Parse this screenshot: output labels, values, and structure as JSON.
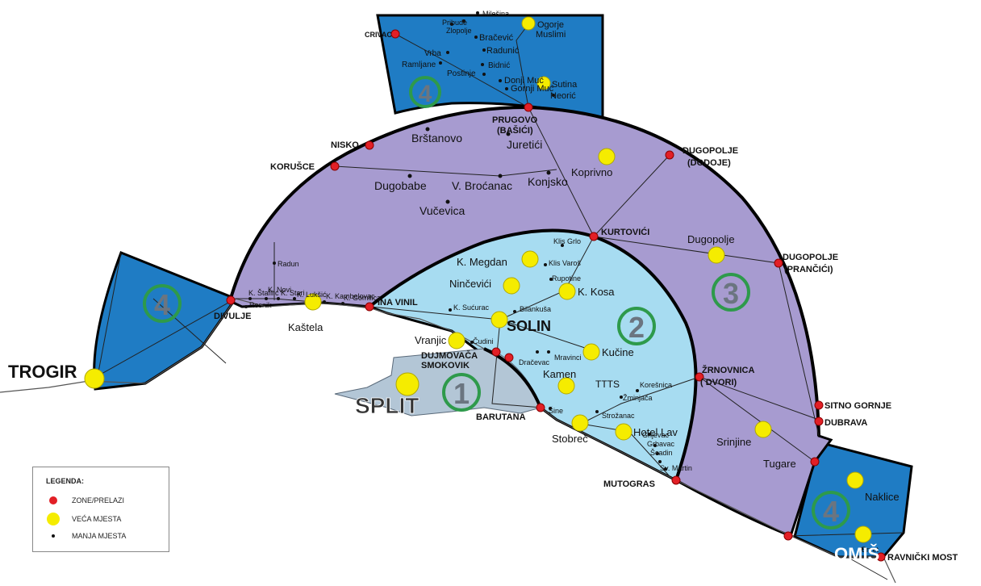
{
  "colors": {
    "zone1": "#b3c6d6",
    "zone2": "#a7dcf1",
    "zone3": "#a79bd0",
    "zone4": "#1f7cc4",
    "border": "#000000",
    "red_dot": "#e21f26",
    "yellow_dot": "#f5ec00",
    "zone_circle": "#2e9a4b",
    "zone_number": "#6b7580"
  },
  "zones": {
    "one": "1",
    "two": "2",
    "three": "3",
    "four": "4"
  },
  "labels": {
    "split": "SPLIT",
    "trogir": "TROGIR",
    "omis": "OMIŠ",
    "solin": "SOLIN"
  },
  "legend": {
    "title": "LEGENDA:",
    "zone_label": "ZONE/PRELAZI",
    "large_label": "VEĆA MJESTA",
    "small_label": "MANJA MJESTA"
  },
  "crossings": [
    {
      "id": "crivac",
      "text": "CRIVAC",
      "bold": true
    },
    {
      "id": "prugovo",
      "text": "PRUGOVO",
      "bold": true
    },
    {
      "id": "basici",
      "text": "(BAŠIĆI)",
      "bold": true
    },
    {
      "id": "nisko",
      "text": "NISKO",
      "bold": true
    },
    {
      "id": "korusce",
      "text": "KORUŠCE",
      "bold": true
    },
    {
      "id": "dugopolje-dodoje",
      "text": "DUGOPOLJE",
      "bold": true
    },
    {
      "id": "dodoje",
      "text": "(DODOJE)",
      "bold": true
    },
    {
      "id": "kurtovici",
      "text": "KURTOVIĆI",
      "bold": true
    },
    {
      "id": "dugopolje-prancici",
      "text": "DUGOPOLJE",
      "bold": true
    },
    {
      "id": "prancici",
      "text": "(PRANČIĆI)",
      "bold": true
    },
    {
      "id": "ina-vinil",
      "text": "INA VINIL",
      "bold": true
    },
    {
      "id": "divulje",
      "text": "DIVULJE",
      "bold": true
    },
    {
      "id": "dujmovaca",
      "text": "DUJMOVAČA",
      "bold": true
    },
    {
      "id": "smokovik",
      "text": "SMOKOVIK",
      "bold": true
    },
    {
      "id": "barutana",
      "text": "BARUTANA",
      "bold": true
    },
    {
      "id": "zrnovnica",
      "text": "ŽRNOVNICA",
      "bold": true
    },
    {
      "id": "dvori",
      "text": "( DVORI)",
      "bold": true
    },
    {
      "id": "sitno-gornje",
      "text": "SITNO GORNJE",
      "bold": true
    },
    {
      "id": "dubrava",
      "text": "DUBRAVA",
      "bold": true
    },
    {
      "id": "mutogras",
      "text": "MUTOGRAS",
      "bold": true
    },
    {
      "id": "ravnicki-most",
      "text": "RAVNIČKI MOST",
      "bold": true
    }
  ],
  "places_large": [
    {
      "id": "ogorje",
      "text": "Ogorje"
    },
    {
      "id": "muslimi",
      "text": "Muslimi"
    },
    {
      "id": "sutina",
      "text": "Sutina"
    },
    {
      "id": "koprivno",
      "text": "Koprivno"
    },
    {
      "id": "dugopolje",
      "text": "Dugopolje"
    },
    {
      "id": "kastela",
      "text": "Kaštela"
    },
    {
      "id": "k-megdan",
      "text": "K. Megdan"
    },
    {
      "id": "nincevici",
      "text": "Ninčevići"
    },
    {
      "id": "k-kosa",
      "text": "K. Kosa"
    },
    {
      "id": "vranjic",
      "text": "Vranjic"
    },
    {
      "id": "kucine",
      "text": "Kučine"
    },
    {
      "id": "kamen",
      "text": "Kamen"
    },
    {
      "id": "stobrec",
      "text": "Stobreč"
    },
    {
      "id": "hotel-lav",
      "text": "Hotel Lav"
    },
    {
      "id": "srinjine",
      "text": "Srinjine"
    },
    {
      "id": "tugare",
      "text": "Tugare"
    },
    {
      "id": "naklice",
      "text": "Naklice"
    }
  ],
  "places_medium": [
    {
      "id": "brstanovo",
      "text": "Brštanovo"
    },
    {
      "id": "juretici",
      "text": "Juretići"
    },
    {
      "id": "dugobabe",
      "text": "Dugobabe"
    },
    {
      "id": "v-brocanac",
      "text": "V. Broćanac"
    },
    {
      "id": "konjsko",
      "text": "Konjsko"
    },
    {
      "id": "vucevica",
      "text": "Vučevica"
    },
    {
      "id": "tts",
      "text": "TTTS"
    }
  ],
  "places_small": [
    {
      "id": "milesina",
      "text": "Milešina"
    },
    {
      "id": "pribude",
      "text": "Pribude"
    },
    {
      "id": "zlopolje",
      "text": "Zlopolje"
    },
    {
      "id": "bracevic",
      "text": "Bračević"
    },
    {
      "id": "radunic",
      "text": "Radunić"
    },
    {
      "id": "vrba",
      "text": "Vrba"
    },
    {
      "id": "bidnic",
      "text": "Bidnić"
    },
    {
      "id": "ramljane",
      "text": "Ramljane"
    },
    {
      "id": "postinje",
      "text": "Postinje"
    },
    {
      "id": "donji-muc",
      "text": "Donji Muć"
    },
    {
      "id": "gornji-muc",
      "text": "Gornji Muć"
    },
    {
      "id": "neoric",
      "text": "Neorić"
    },
    {
      "id": "radun",
      "text": "Radun"
    },
    {
      "id": "k-stafilic",
      "text": "K. Štafilić"
    },
    {
      "id": "k-novi",
      "text": "K. Novi"
    },
    {
      "id": "k-stari",
      "text": "K. Stari"
    },
    {
      "id": "k-luksic",
      "text": "K. Lukšić"
    },
    {
      "id": "k-kambelovac",
      "text": "K. Kambelovac"
    },
    {
      "id": "k-gomilica",
      "text": "K. Gomilica"
    },
    {
      "id": "resnik",
      "text": "Resnik"
    },
    {
      "id": "klis-grlo",
      "text": "Klis Grlo"
    },
    {
      "id": "klis-varos",
      "text": "Klis Varoš"
    },
    {
      "id": "rupotine",
      "text": "Rupotine"
    },
    {
      "id": "k-sucurac",
      "text": "K. Sućurac"
    },
    {
      "id": "bilankusa",
      "text": "Bilankuša"
    },
    {
      "id": "cudini",
      "text": "Čudini"
    },
    {
      "id": "dracevac",
      "text": "Dračevac"
    },
    {
      "id": "mravinci",
      "text": "Mravinci"
    },
    {
      "id": "koresnica",
      "text": "Korešnica"
    },
    {
      "id": "zminjaca",
      "text": "Žminjača"
    },
    {
      "id": "sine",
      "text": "Šine"
    },
    {
      "id": "strozanac",
      "text": "Strožanac"
    },
    {
      "id": "grljevac",
      "text": "Grljevac"
    },
    {
      "id": "grbavac",
      "text": "Grbavac"
    },
    {
      "id": "scadin",
      "text": "Šcadin"
    },
    {
      "id": "sv-martin",
      "text": "Sv. Martin"
    },
    {
      "id": "brzet",
      "text": "Brzet"
    }
  ]
}
